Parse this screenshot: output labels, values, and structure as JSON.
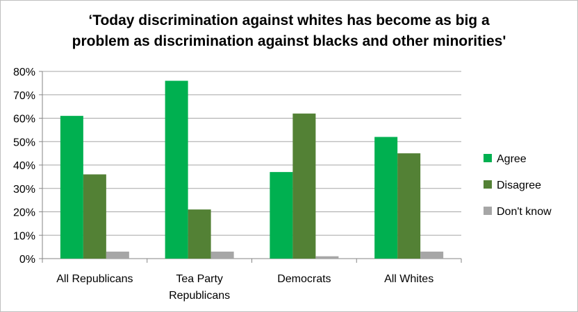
{
  "chart_data": {
    "type": "bar",
    "title": "‘Today discrimination against whites has become as big a\nproblem as discrimination against blacks and other minorities'",
    "categories": [
      "All Republicans",
      "Tea Party\nRepublicans",
      "Democrats",
      "All Whites"
    ],
    "series": [
      {
        "name": "Agree",
        "values": [
          61,
          76,
          37,
          52
        ],
        "color": "#00b050"
      },
      {
        "name": "Disagree",
        "values": [
          36,
          21,
          62,
          45
        ],
        "color": "#538135"
      },
      {
        "name": "Don't know",
        "values": [
          3,
          3,
          1,
          3
        ],
        "color": "#a6a6a6"
      }
    ],
    "ylim": [
      0,
      80
    ],
    "yticks": [
      "0%",
      "10%",
      "20%",
      "30%",
      "40%",
      "50%",
      "60%",
      "70%",
      "80%"
    ],
    "grid": true,
    "legend": "right",
    "xlabel": "",
    "ylabel": ""
  }
}
